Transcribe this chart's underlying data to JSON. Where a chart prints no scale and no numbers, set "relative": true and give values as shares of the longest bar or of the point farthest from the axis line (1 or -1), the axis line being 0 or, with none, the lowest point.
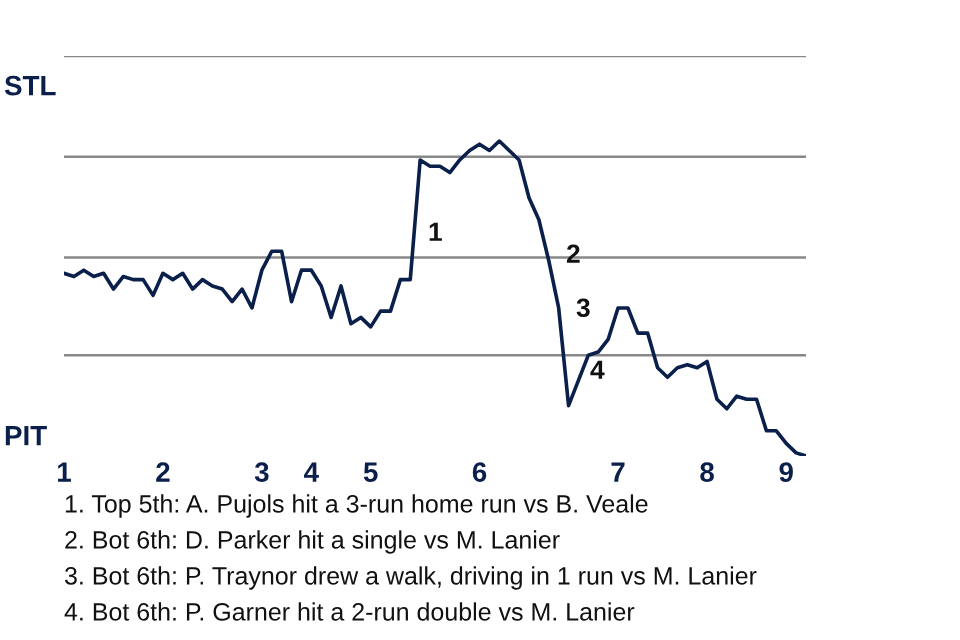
{
  "chart_data": {
    "type": "line",
    "relative": true,
    "categories": [
      "1",
      null,
      null,
      null,
      null,
      null,
      null,
      null,
      null,
      null,
      "2",
      null,
      null,
      null,
      null,
      null,
      null,
      null,
      null,
      null,
      "3",
      null,
      null,
      null,
      null,
      "4",
      null,
      null,
      null,
      null,
      null,
      "5",
      null,
      null,
      null,
      null,
      null,
      null,
      null,
      null,
      null,
      null,
      "6",
      null,
      null,
      null,
      null,
      null,
      null,
      null,
      null,
      null,
      null,
      null,
      null,
      null,
      "7",
      null,
      null,
      null,
      null,
      null,
      null,
      null,
      null,
      "8",
      null,
      null,
      null,
      null,
      null,
      null,
      null,
      "9",
      null,
      null
    ],
    "series": [
      {
        "color": "#0b1f4b",
        "values": [
          0.58,
          0.57,
          0.59,
          0.57,
          0.58,
          0.53,
          0.57,
          0.56,
          0.56,
          0.51,
          0.58,
          0.56,
          0.58,
          0.53,
          0.56,
          0.54,
          0.53,
          0.49,
          0.53,
          0.47,
          0.59,
          0.65,
          0.65,
          0.49,
          0.59,
          0.59,
          0.54,
          0.44,
          0.54,
          0.42,
          0.44,
          0.41,
          0.46,
          0.46,
          0.56,
          0.56,
          0.94,
          0.92,
          0.92,
          0.9,
          0.94,
          0.97,
          0.99,
          0.97,
          1,
          0.97,
          0.94,
          0.82,
          0.75,
          0.62,
          0.47,
          0.16,
          0.24,
          0.32,
          0.33,
          0.37,
          0.47,
          0.47,
          0.39,
          0.39,
          0.28,
          0.25,
          0.28,
          0.29,
          0.28,
          0.3,
          0.18,
          0.15,
          0.19,
          0.18,
          0.18,
          0.08,
          0.08,
          0.04,
          0.01,
          0
        ],
        "line_style": "solid"
      }
    ],
    "ref_lines": [
      {
        "axis": "y",
        "value": 0.32,
        "color": "#888888"
      },
      {
        "axis": "y",
        "value": 0.63,
        "color": "#888888"
      },
      {
        "axis": "y",
        "value": 0.95,
        "color": "#888888"
      },
      {
        "axis": "y",
        "value": 1.27,
        "color": "#888888"
      }
    ],
    "annotations": [
      "1",
      "2",
      "3",
      "4",
      "STL",
      "PIT",
      "1. Top 5th: A. Pujols hit a 3-run home run vs B. Veale",
      "2. Bot 6th: D. Parker hit a single vs M. Lanier",
      "3. Bot 6th: P. Traynor drew a walk, driving in 1 run vs M. Lanier",
      "4. Bot 6th: P. Garner hit a 2-run double vs M. Lanier"
    ]
  }
}
